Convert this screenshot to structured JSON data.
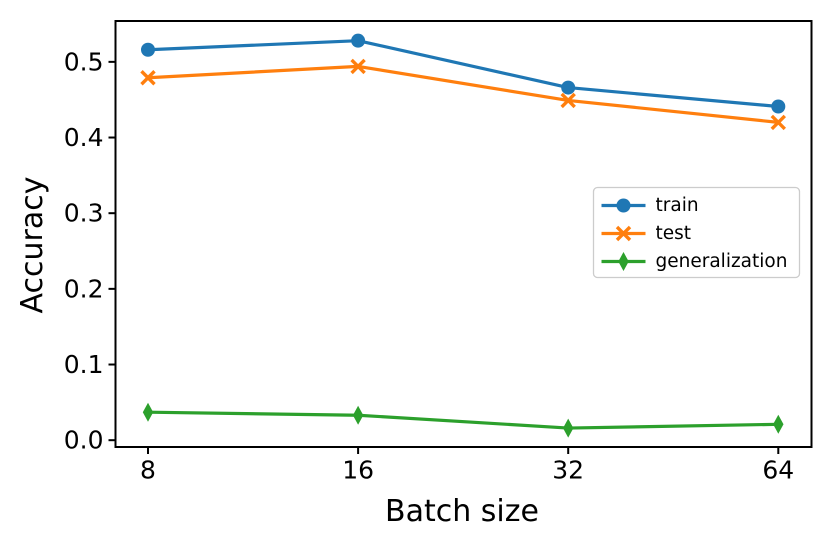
{
  "chart_data": {
    "type": "line",
    "title": "",
    "xlabel": "Batch size",
    "ylabel": "Accuracy",
    "categories": [
      "8",
      "16",
      "32",
      "64"
    ],
    "x_tick_labels": [
      "8",
      "16",
      "32",
      "64"
    ],
    "y_tick_labels": [
      "0.0",
      "0.1",
      "0.2",
      "0.3",
      "0.4",
      "0.5"
    ],
    "yticks": [
      0.0,
      0.1,
      0.2,
      0.3,
      0.4,
      0.5
    ],
    "ylim": [
      -0.009,
      0.554
    ],
    "grid": false,
    "legend": {
      "position": "center-right",
      "labels": [
        "train",
        "test",
        "generalization"
      ],
      "border_color": "#cccccc",
      "background": "#ffffff"
    },
    "series": [
      {
        "name": "train",
        "marker": "circle",
        "color": "#1f77b4",
        "values": [
          0.516,
          0.528,
          0.466,
          0.441
        ]
      },
      {
        "name": "test",
        "marker": "x",
        "color": "#ff7f0e",
        "values": [
          0.479,
          0.494,
          0.449,
          0.42
        ]
      },
      {
        "name": "generalization",
        "marker": "thin-diamond",
        "color": "#2ca02c",
        "values": [
          0.037,
          0.033,
          0.016,
          0.021
        ]
      }
    ],
    "axis_color": "#000000",
    "text_color": "#000000"
  }
}
